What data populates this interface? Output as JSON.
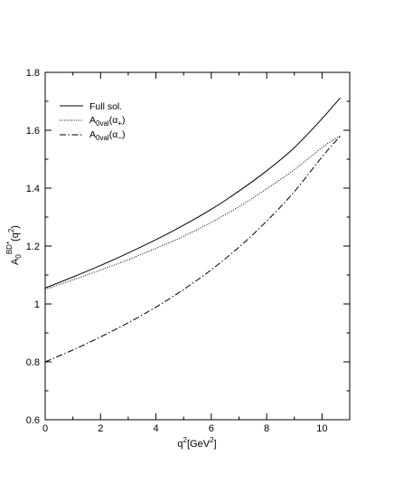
{
  "chart_data": {
    "type": "line",
    "title": "",
    "xlim": [
      0,
      11
    ],
    "ylim": [
      0.6,
      1.8
    ],
    "x_ticks": [
      0,
      2,
      4,
      6,
      8,
      10
    ],
    "y_ticks": [
      0.6,
      0.8,
      1.0,
      1.2,
      1.4,
      1.6,
      1.8
    ],
    "x_tick_labels": [
      "0",
      "2",
      "4",
      "6",
      "8",
      "10"
    ],
    "y_tick_labels": [
      "0.6",
      "0.8",
      "1",
      "1.2",
      "1.4",
      "1.6",
      "1.8"
    ],
    "xlabel": {
      "base": "q",
      "sup": "2",
      "rest": "[GeV",
      "sup2": "2",
      "end": "]"
    },
    "ylabel": {
      "base": "A",
      "sub": "0",
      "sup": "BD*",
      "rest": "(q",
      "sup2": "2",
      "end": ")"
    },
    "grid": false,
    "legend_position": "top-left",
    "series": [
      {
        "name": "Full sol.",
        "style": "solid",
        "x": [
          0,
          1,
          2,
          3,
          4,
          5,
          6,
          7,
          8,
          9,
          10,
          10.66
        ],
        "y": [
          1.055,
          1.093,
          1.133,
          1.176,
          1.222,
          1.272,
          1.327,
          1.39,
          1.46,
          1.54,
          1.64,
          1.712
        ]
      },
      {
        "name": {
          "base": "A",
          "sub": "0val",
          "paren": "(α",
          "sub2": "+",
          "end": ")"
        },
        "style": "dotted",
        "x": [
          0,
          1,
          2,
          3,
          4,
          5,
          6,
          7,
          8,
          9,
          10,
          10.5,
          10.66
        ],
        "y": [
          1.05,
          1.083,
          1.117,
          1.153,
          1.192,
          1.234,
          1.282,
          1.336,
          1.398,
          1.464,
          1.54,
          1.572,
          1.58
        ]
      },
      {
        "name": {
          "base": "A",
          "sub": "0val",
          "paren": "(α",
          "sub2": "−",
          "end": ")"
        },
        "style": "dashdot",
        "x": [
          0,
          1,
          2,
          3,
          4,
          5,
          6,
          7,
          8,
          9,
          10,
          10.66
        ],
        "y": [
          0.8,
          0.841,
          0.886,
          0.935,
          0.989,
          1.05,
          1.118,
          1.196,
          1.286,
          1.388,
          1.508,
          1.58
        ]
      }
    ]
  }
}
